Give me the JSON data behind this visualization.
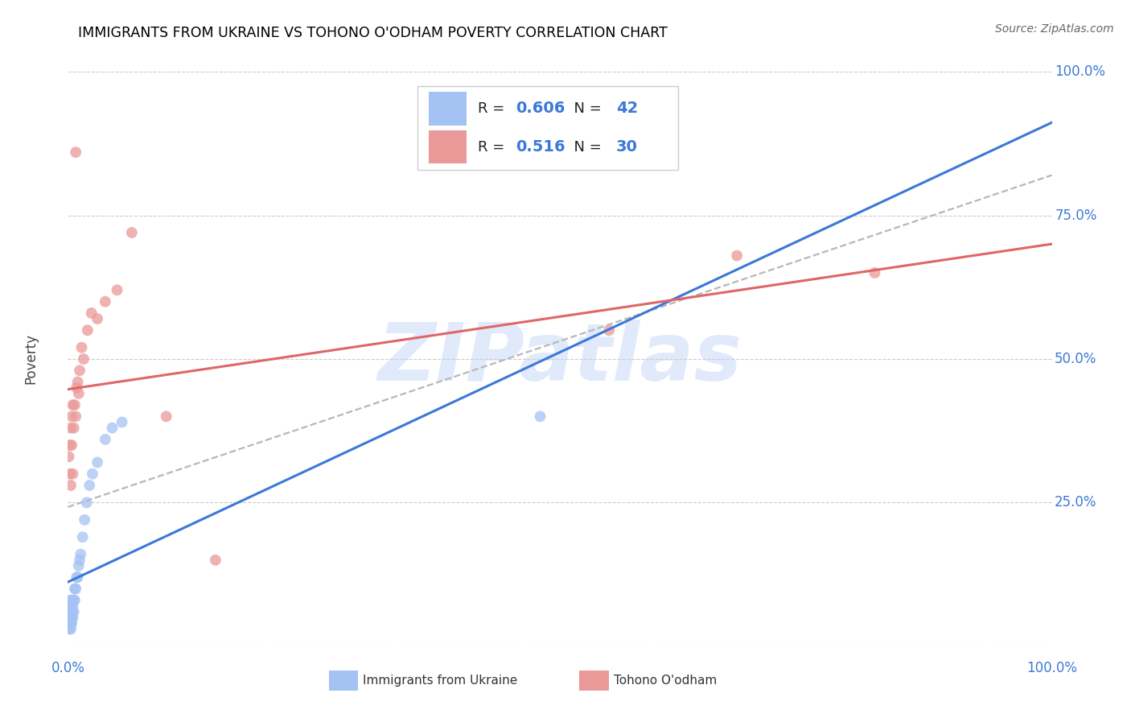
{
  "title": "IMMIGRANTS FROM UKRAINE VS TOHONO O'ODHAM POVERTY CORRELATION CHART",
  "source": "Source: ZipAtlas.com",
  "ylabel": "Poverty",
  "ukraine_color": "#a4c2f4",
  "tohono_color": "#ea9999",
  "ukraine_line_color": "#3c78d8",
  "tohono_line_color": "#e06666",
  "trendline_color": "#b7b7b7",
  "background_color": "#ffffff",
  "watermark_text": "ZIPatlas",
  "legend_label1": "Immigrants from Ukraine",
  "legend_label2": "Tohono O'odham",
  "legend_r1": "0.606",
  "legend_n1": "42",
  "legend_r2": "0.516",
  "legend_n2": "30",
  "ukraine_x": [
    0.001,
    0.001,
    0.001,
    0.001,
    0.002,
    0.002,
    0.002,
    0.002,
    0.002,
    0.002,
    0.003,
    0.003,
    0.003,
    0.003,
    0.003,
    0.004,
    0.004,
    0.004,
    0.004,
    0.005,
    0.005,
    0.005,
    0.006,
    0.006,
    0.007,
    0.007,
    0.008,
    0.009,
    0.01,
    0.011,
    0.012,
    0.013,
    0.015,
    0.017,
    0.019,
    0.022,
    0.025,
    0.03,
    0.038,
    0.045,
    0.055,
    0.48
  ],
  "ukraine_y": [
    0.04,
    0.05,
    0.06,
    0.07,
    0.03,
    0.04,
    0.05,
    0.06,
    0.07,
    0.08,
    0.03,
    0.04,
    0.05,
    0.06,
    0.07,
    0.04,
    0.05,
    0.06,
    0.08,
    0.05,
    0.06,
    0.07,
    0.06,
    0.08,
    0.08,
    0.1,
    0.1,
    0.12,
    0.12,
    0.14,
    0.15,
    0.16,
    0.19,
    0.22,
    0.25,
    0.28,
    0.3,
    0.32,
    0.36,
    0.38,
    0.39,
    0.4
  ],
  "tohono_x": [
    0.001,
    0.002,
    0.002,
    0.003,
    0.003,
    0.004,
    0.004,
    0.005,
    0.005,
    0.006,
    0.007,
    0.008,
    0.009,
    0.01,
    0.011,
    0.012,
    0.014,
    0.016,
    0.02,
    0.024,
    0.03,
    0.038,
    0.05,
    0.065,
    0.55,
    0.68,
    0.82,
    0.1,
    0.008,
    0.15
  ],
  "tohono_y": [
    0.33,
    0.3,
    0.35,
    0.28,
    0.38,
    0.35,
    0.4,
    0.3,
    0.42,
    0.38,
    0.42,
    0.4,
    0.45,
    0.46,
    0.44,
    0.48,
    0.52,
    0.5,
    0.55,
    0.58,
    0.57,
    0.6,
    0.62,
    0.72,
    0.55,
    0.68,
    0.65,
    0.4,
    0.86,
    0.15
  ],
  "xlim": [
    0.0,
    1.0
  ],
  "ylim": [
    0.0,
    1.0
  ],
  "ytick_positions": [
    0.0,
    0.25,
    0.5,
    0.75,
    1.0
  ],
  "ytick_labels": [
    "",
    "25.0%",
    "50.0%",
    "75.0%",
    "100.0%"
  ]
}
